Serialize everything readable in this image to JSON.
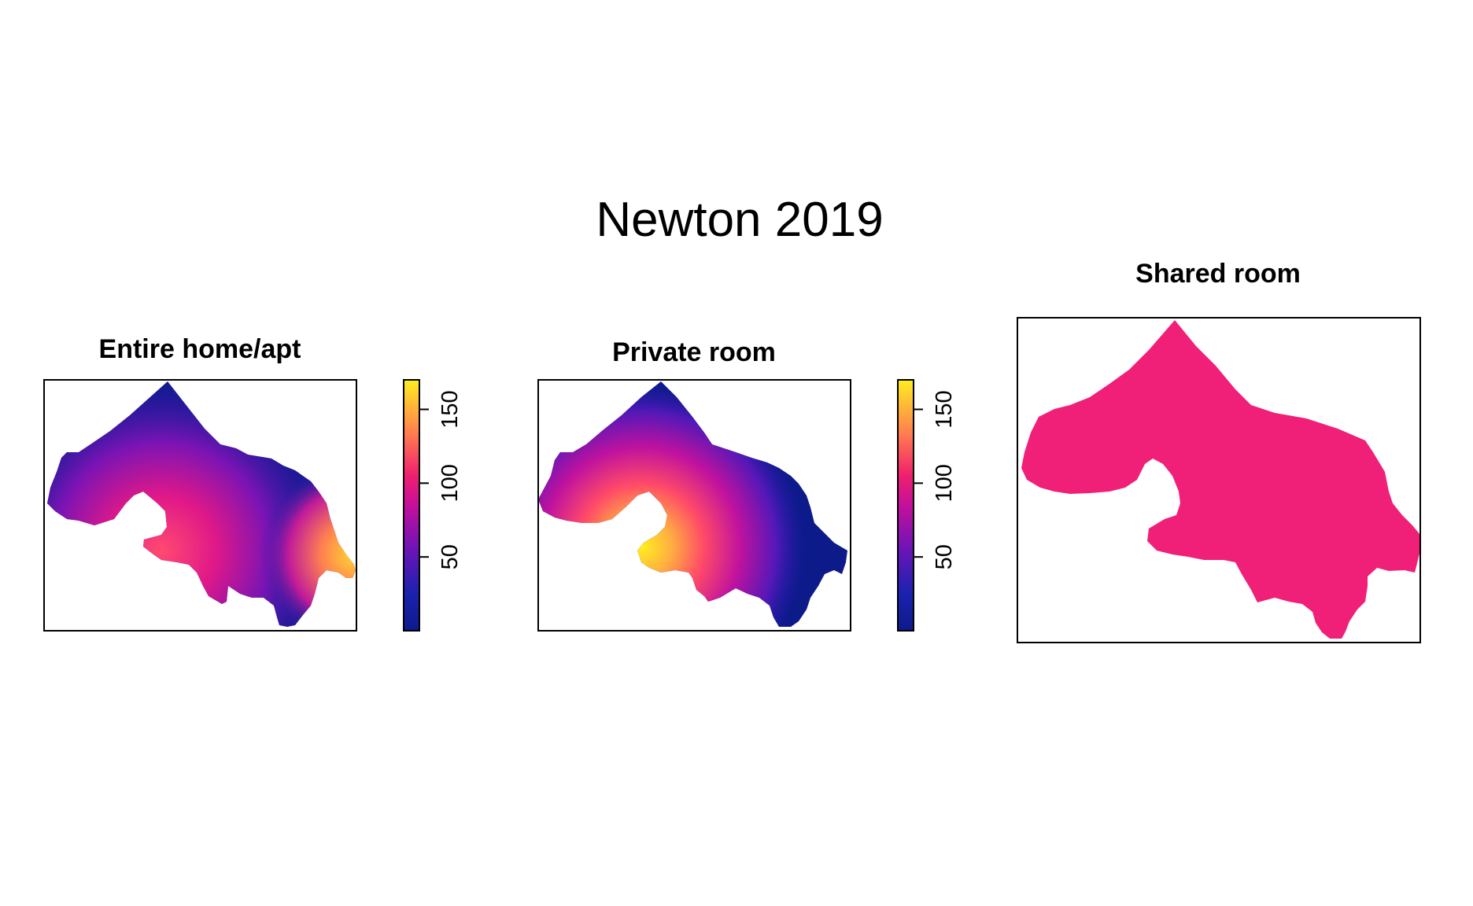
{
  "figure_title": "Newton 2019",
  "colors": {
    "low": "#0a1a8c",
    "high": "#ffee20",
    "shared_fill": "#f01f78",
    "frame": "#000000",
    "background": "#ffffff"
  },
  "chart_data": [
    {
      "type": "heatmap",
      "title": "Entire home/apt",
      "colorbar": {
        "ticks": [
          50,
          100,
          150
        ],
        "range": [
          0,
          170
        ],
        "palette": "plasma"
      },
      "hotspots": [
        {
          "location": "south-west lobe",
          "value": 120
        },
        {
          "location": "east edge",
          "value": 165
        }
      ]
    },
    {
      "type": "heatmap",
      "title": "Private room",
      "colorbar": {
        "ticks": [
          50,
          100,
          150
        ],
        "range": [
          0,
          170
        ],
        "palette": "plasma"
      },
      "hotspots": [
        {
          "location": "south-west lobe",
          "value": 165
        }
      ]
    },
    {
      "type": "heatmap",
      "title": "Shared room",
      "colorbar": null,
      "uniform_color": "#f01f78"
    }
  ]
}
